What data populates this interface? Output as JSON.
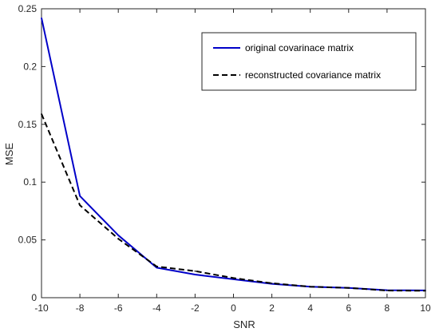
{
  "chart_data": {
    "type": "line",
    "title": "",
    "xlabel": "SNR",
    "ylabel": "MSE",
    "xlim": [
      -10,
      10
    ],
    "ylim": [
      0,
      0.25
    ],
    "xticks": [
      -10,
      -8,
      -6,
      -4,
      -2,
      0,
      2,
      4,
      6,
      8,
      10
    ],
    "yticks": [
      0,
      0.05,
      0.1,
      0.15,
      0.2,
      0.25
    ],
    "xtick_labels": [
      "-10",
      "-8",
      "-6",
      "-4",
      "-2",
      "0",
      "2",
      "4",
      "6",
      "8",
      "10"
    ],
    "ytick_labels": [
      "0",
      "0.05",
      "0.1",
      "0.15",
      "0.2",
      "0.25"
    ],
    "grid": false,
    "legend_position": "top-right",
    "x": [
      -10,
      -8,
      -6,
      -4,
      -2,
      0,
      2,
      4,
      6,
      8,
      10
    ],
    "series": [
      {
        "name": "original covarinace matrix",
        "values": [
          0.242,
          0.088,
          0.054,
          0.026,
          0.02,
          0.016,
          0.012,
          0.0095,
          0.0085,
          0.0065,
          0.0063
        ],
        "color": "#0000c8",
        "style": "solid"
      },
      {
        "name": "reconstructed covariance matrix",
        "values": [
          0.159,
          0.08,
          0.051,
          0.027,
          0.023,
          0.017,
          0.0125,
          0.0095,
          0.0085,
          0.0062,
          0.006
        ],
        "color": "#000000",
        "style": "dashed"
      }
    ]
  }
}
